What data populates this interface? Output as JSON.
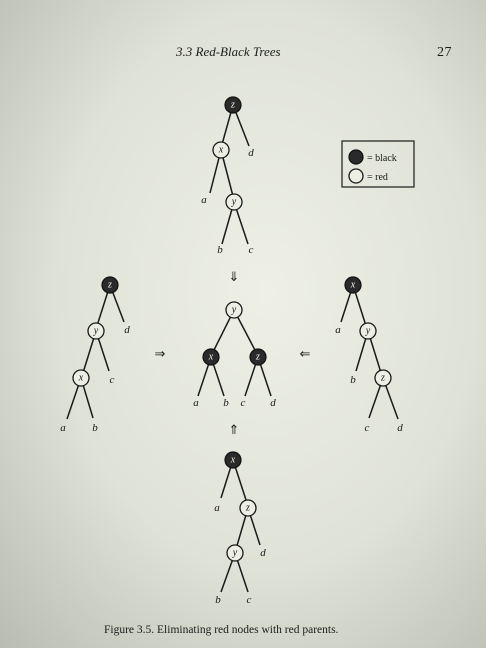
{
  "header": {
    "title": "3.3  Red-Black Trees",
    "page_number": "27"
  },
  "legend": {
    "black_label": "= black",
    "red_label": "= red"
  },
  "arrows": {
    "down": "⇓",
    "up": "⇑",
    "right": "⇒",
    "left": "⇐"
  },
  "trees": {
    "top": {
      "nodes": {
        "z": "z",
        "x": "x",
        "y": "y"
      },
      "leaves": {
        "a": "a",
        "b": "b",
        "c": "c",
        "d": "d"
      }
    },
    "left": {
      "nodes": {
        "z": "z",
        "y": "y",
        "x": "x"
      },
      "leaves": {
        "a": "a",
        "b": "b",
        "c": "c",
        "d": "d"
      }
    },
    "center": {
      "nodes": {
        "y": "y",
        "x": "x",
        "z": "z"
      },
      "leaves": {
        "a": "a",
        "b": "b",
        "c": "c",
        "d": "d"
      }
    },
    "right": {
      "nodes": {
        "x": "x",
        "y": "y",
        "z": "z"
      },
      "leaves": {
        "a": "a",
        "b": "b",
        "c": "c",
        "d": "d"
      }
    },
    "bottom": {
      "nodes": {
        "x": "x",
        "z": "z",
        "y": "y"
      },
      "leaves": {
        "a": "a",
        "b": "b",
        "c": "c",
        "d": "d"
      }
    }
  },
  "caption": "Figure 3.5.  Eliminating red nodes with red parents."
}
